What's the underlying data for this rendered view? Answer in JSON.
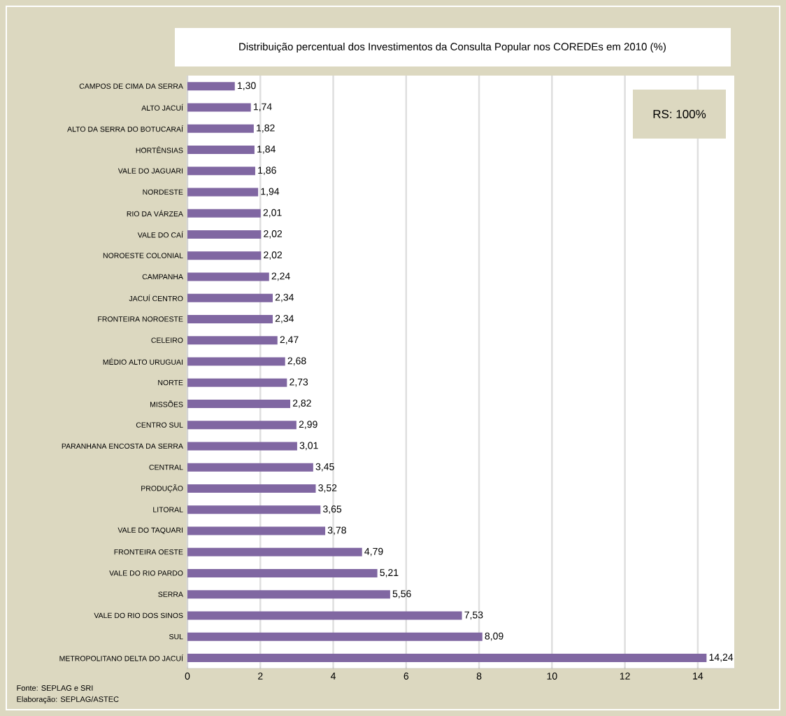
{
  "chart_data": {
    "type": "bar",
    "orientation": "horizontal",
    "title": "Distribuição percentual dos Investimentos da Consulta Popular nos COREDEs em 2010 (%)",
    "categories": [
      "CAMPOS DE CIMA DA SERRA",
      "ALTO JACUÍ",
      "ALTO DA SERRA DO BOTUCARAÍ",
      "HORTÊNSIAS",
      "VALE DO JAGUARI",
      "NORDESTE",
      "RIO DA VÁRZEA",
      "VALE DO CAÍ",
      "NOROESTE COLONIAL",
      "CAMPANHA",
      "JACUÍ CENTRO",
      "FRONTEIRA NOROESTE",
      "CELEIRO",
      "MÉDIO ALTO URUGUAI",
      "NORTE",
      "MISSÕES",
      "CENTRO SUL",
      "PARANHANA ENCOSTA DA SERRA",
      "CENTRAL",
      "PRODUÇÃO",
      "LITORAL",
      "VALE DO TAQUARI",
      "FRONTEIRA OESTE",
      "VALE DO RIO PARDO",
      "SERRA",
      "VALE DO RIO DOS SINOS",
      "SUL",
      "METROPOLITANO DELTA DO JACUÍ"
    ],
    "values": [
      1.3,
      1.74,
      1.82,
      1.84,
      1.86,
      1.94,
      2.01,
      2.02,
      2.02,
      2.24,
      2.34,
      2.34,
      2.47,
      2.68,
      2.73,
      2.82,
      2.99,
      3.01,
      3.45,
      3.52,
      3.65,
      3.78,
      4.79,
      5.21,
      5.56,
      7.53,
      8.09,
      14.24
    ],
    "value_labels": [
      "1,30",
      "1,74",
      "1,82",
      "1,84",
      "1,86",
      "1,94",
      "2,01",
      "2,02",
      "2,02",
      "2,24",
      "2,34",
      "2,34",
      "2,47",
      "2,68",
      "2,73",
      "2,82",
      "2,99",
      "3,01",
      "3,45",
      "3,52",
      "3,65",
      "3,78",
      "4,79",
      "5,21",
      "5,56",
      "7,53",
      "8,09",
      "14,24"
    ],
    "color": "#8067a2",
    "xlim": [
      0,
      15
    ],
    "xticks": [
      0,
      2,
      4,
      6,
      8,
      10,
      12,
      14
    ],
    "grid": "x",
    "annotations": [
      "RS: 100%",
      "Fonte:  SEPLAG  e SRI",
      "Elaboração:  SEPLAG/ASTEC"
    ]
  }
}
